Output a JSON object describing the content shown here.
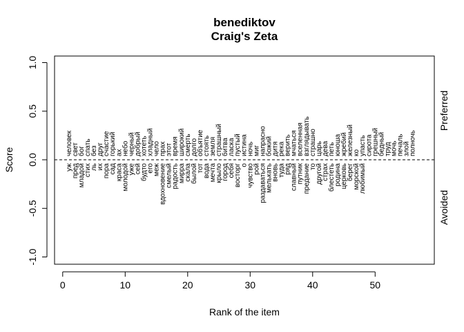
{
  "chart_data": {
    "type": "scatter",
    "title": "benediktov",
    "subtitle": "Craig's Zeta",
    "xlabel": "Rank of the item",
    "ylabel": "Score",
    "xlim": [
      0,
      56
    ],
    "ylim": [
      -1.0,
      1.0
    ],
    "x_ticks": [
      "0",
      "10",
      "20",
      "30",
      "40",
      "50"
    ],
    "y_ticks": [
      "-1.0",
      "-0.5",
      "0.0",
      "0.5",
      "1.0"
    ],
    "right_labels": {
      "top": "Preferred",
      "bottom": "Avoided"
    },
    "reference_line": 0.0,
    "preferred": [
      {
        "rank": 1,
        "word": "человек"
      },
      {
        "rank": 2,
        "word": "свет"
      },
      {
        "rank": 3,
        "word": "бог"
      },
      {
        "rank": 4,
        "word": "спать"
      },
      {
        "rank": 5,
        "word": "без"
      },
      {
        "rank": 6,
        "word": "друг"
      },
      {
        "rank": 7,
        "word": "счастие"
      },
      {
        "rank": 8,
        "word": "горький"
      },
      {
        "rank": 9,
        "word": "ах"
      },
      {
        "rank": 10,
        "word": "небо"
      },
      {
        "rank": 11,
        "word": "черный"
      },
      {
        "rank": 12,
        "word": "добрый"
      },
      {
        "rank": 13,
        "word": "хотеть"
      },
      {
        "rank": 14,
        "word": "хладный"
      },
      {
        "rank": 15,
        "word": "чело"
      },
      {
        "rank": 16,
        "word": "прах"
      },
      {
        "rank": 17,
        "word": "этот"
      },
      {
        "rank": 18,
        "word": "время"
      },
      {
        "rank": 19,
        "word": "широкий"
      },
      {
        "rank": 20,
        "word": "смерть"
      },
      {
        "rank": 21,
        "word": "долго"
      },
      {
        "rank": 22,
        "word": "объятие"
      },
      {
        "rank": 23,
        "word": "стоять"
      },
      {
        "rank": 24,
        "word": "земля"
      },
      {
        "rank": 25,
        "word": "страшный"
      },
      {
        "rank": 26,
        "word": "битва"
      },
      {
        "rank": 27,
        "word": "ласка"
      },
      {
        "rank": 28,
        "word": "пустый"
      },
      {
        "rank": 29,
        "word": "истина"
      },
      {
        "rank": 30,
        "word": "ночь"
      },
      {
        "rank": 31,
        "word": "миг"
      },
      {
        "rank": 32,
        "word": "напрасно"
      },
      {
        "rank": 33,
        "word": "божий"
      },
      {
        "rank": 34,
        "word": "дитя"
      },
      {
        "rank": 35,
        "word": "река"
      },
      {
        "rank": 36,
        "word": "верить"
      },
      {
        "rank": 37,
        "word": "мчаться"
      },
      {
        "rank": 38,
        "word": "вселенная"
      },
      {
        "rank": 39,
        "word": "взглядывать"
      },
      {
        "rank": 40,
        "word": "страшно"
      },
      {
        "rank": 41,
        "word": "царь"
      },
      {
        "rank": 42,
        "word": "дева"
      },
      {
        "rank": 43,
        "word": "петь"
      },
      {
        "rank": 44,
        "word": "юноша"
      },
      {
        "rank": 45,
        "word": "жребий"
      },
      {
        "rank": 46,
        "word": "железный"
      },
      {
        "rank": 47,
        "word": "ко"
      },
      {
        "rank": 48,
        "word": "упасть"
      },
      {
        "rank": 49,
        "word": "сирота"
      },
      {
        "rank": 50,
        "word": "грешный"
      },
      {
        "rank": 51,
        "word": "бедный"
      },
      {
        "rank": 52,
        "word": "труд"
      },
      {
        "rank": 53,
        "word": "мочь"
      },
      {
        "rank": 54,
        "word": "печаль"
      },
      {
        "rank": 55,
        "word": "злой"
      },
      {
        "rank": 56,
        "word": "полночь"
      }
    ],
    "avoided": [
      {
        "rank": 1,
        "word": "уж"
      },
      {
        "rank": 2,
        "word": "пред"
      },
      {
        "rank": 3,
        "word": "младой"
      },
      {
        "rank": 4,
        "word": "стих"
      },
      {
        "rank": 5,
        "word": "ль"
      },
      {
        "rank": 6,
        "word": "их"
      },
      {
        "rank": 7,
        "word": "пора"
      },
      {
        "rank": 8,
        "word": "сад"
      },
      {
        "rank": 9,
        "word": "краса"
      },
      {
        "rank": 10,
        "word": "молодой"
      },
      {
        "rank": 11,
        "word": "уже"
      },
      {
        "rank": 12,
        "word": "сей"
      },
      {
        "rank": 13,
        "word": "будто"
      },
      {
        "rank": 14,
        "word": "его"
      },
      {
        "rank": 15,
        "word": "меж"
      },
      {
        "rank": 16,
        "word": "вдохновение"
      },
      {
        "rank": 17,
        "word": "смелый"
      },
      {
        "rank": 18,
        "word": "радость"
      },
      {
        "rank": 19,
        "word": "мирра"
      },
      {
        "rank": 20,
        "word": "скала"
      },
      {
        "rank": 21,
        "word": "былой"
      },
      {
        "rank": 22,
        "word": "тот"
      },
      {
        "rank": 23,
        "word": "вода"
      },
      {
        "rank": 24,
        "word": "мечта"
      },
      {
        "rank": 25,
        "word": "крыло"
      },
      {
        "rank": 26,
        "word": "город"
      },
      {
        "rank": 27,
        "word": "себя"
      },
      {
        "rank": 28,
        "word": "восторг"
      },
      {
        "rank": 29,
        "word": "о"
      },
      {
        "rank": 30,
        "word": "чувство"
      },
      {
        "rank": 31,
        "word": "рой"
      },
      {
        "rank": 32,
        "word": "раздаваться"
      },
      {
        "rank": 33,
        "word": "мелькать"
      },
      {
        "rank": 34,
        "word": "вновь"
      },
      {
        "rank": 35,
        "word": "туда"
      },
      {
        "rank": 36,
        "word": "ряд"
      },
      {
        "rank": 37,
        "word": "славный"
      },
      {
        "rank": 38,
        "word": "путник"
      },
      {
        "rank": 39,
        "word": "предание"
      },
      {
        "rank": 40,
        "word": "то"
      },
      {
        "rank": 41,
        "word": "другой"
      },
      {
        "rank": 42,
        "word": "страх"
      },
      {
        "rank": 43,
        "word": "блестеть"
      },
      {
        "rank": 44,
        "word": "родина"
      },
      {
        "rank": 45,
        "word": "церковь"
      },
      {
        "rank": 46,
        "word": "берег"
      },
      {
        "rank": 47,
        "word": "морской"
      },
      {
        "rank": 48,
        "word": "любимый"
      }
    ]
  }
}
